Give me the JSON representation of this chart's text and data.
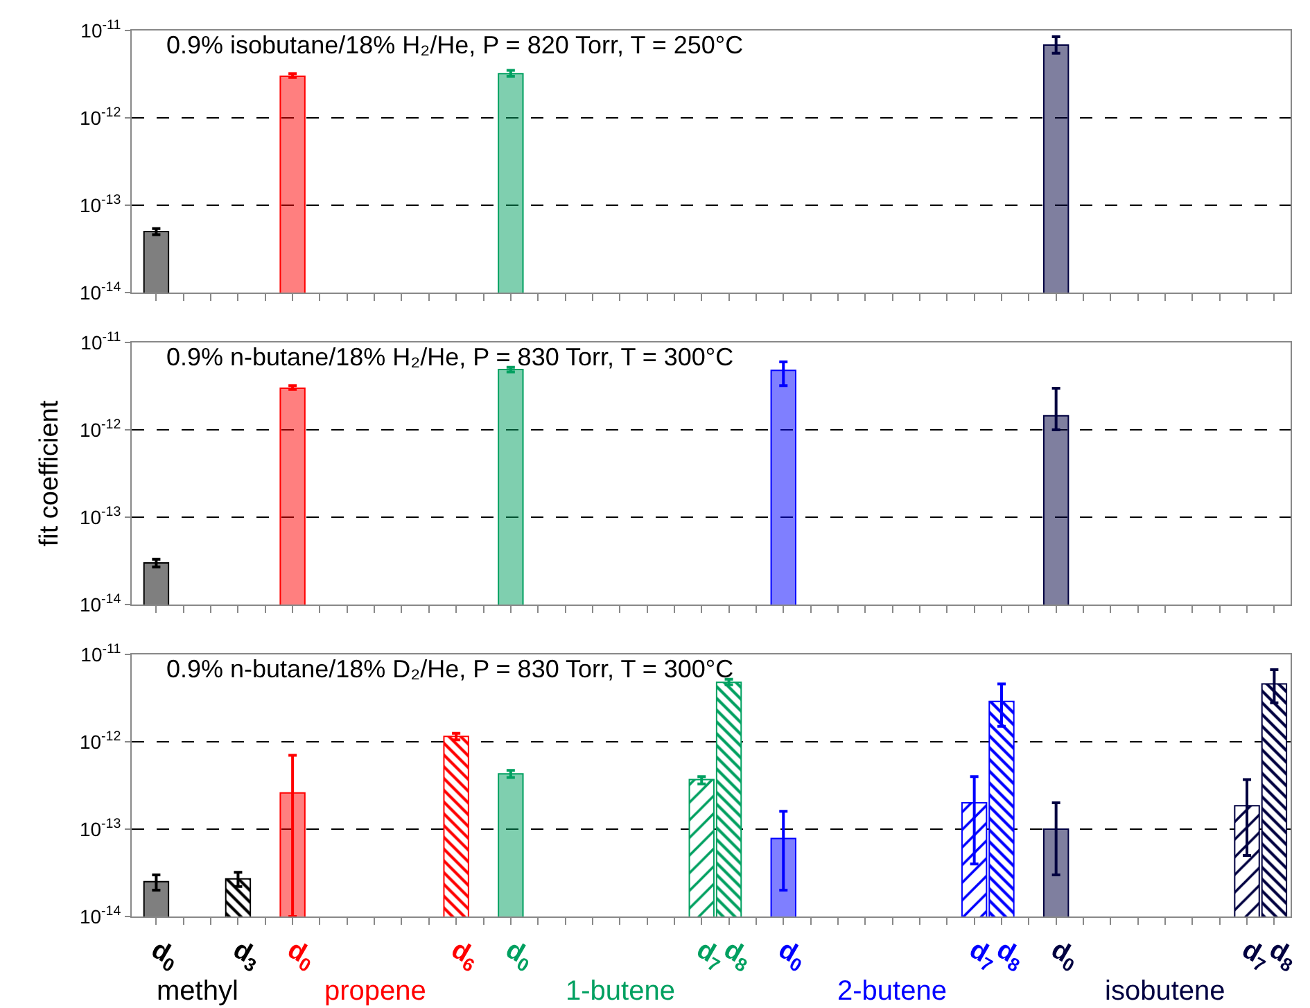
{
  "chart_data": [
    {
      "type": "bar",
      "title": "0.9% isobutane/18% H₂/He, P = 820 Torr, T = 250°C",
      "log": true,
      "grid": "y",
      "tick_labels": "y",
      "ylim": [
        1e-14,
        1e-11
      ],
      "yticks": [
        {
          "value": 1e-14,
          "label": "10$^{-14}$"
        },
        {
          "value": 1e-13,
          "label": "10$^{-13}$"
        },
        {
          "value": 1e-12,
          "label": "10$^{-12}$"
        },
        {
          "value": 1e-11,
          "label": "10$^{-11}$"
        }
      ],
      "series": [
        {
          "colors": [
            "#000000",
            null,
            null,
            null,
            null,
            "#ff0000",
            null,
            null,
            null,
            null,
            null,
            null,
            null,
            "#00a060",
            null,
            null,
            null,
            null,
            null,
            null,
            null,
            null,
            null,
            null,
            null,
            null,
            null,
            null,
            null,
            null,
            null,
            null,
            null,
            "#000040",
            null,
            null,
            null,
            null,
            null,
            null,
            null,
            null
          ],
          "values": [
            5e-14,
            null,
            null,
            null,
            null,
            3e-12,
            null,
            null,
            null,
            null,
            null,
            null,
            null,
            3.2e-12,
            null,
            null,
            null,
            null,
            null,
            null,
            null,
            null,
            null,
            null,
            null,
            null,
            null,
            null,
            null,
            null,
            null,
            null,
            null,
            6.8e-12,
            null,
            null,
            null,
            null,
            null,
            null,
            null,
            null
          ],
          "errors": [
            [
              4.6e-14,
              5.4e-14
            ],
            null,
            null,
            null,
            null,
            [
              2.9e-12,
              3.2e-12
            ],
            null,
            null,
            null,
            null,
            null,
            null,
            null,
            [
              3e-12,
              3.5e-12
            ],
            null,
            null,
            null,
            null,
            null,
            null,
            null,
            null,
            null,
            null,
            null,
            null,
            null,
            null,
            null,
            null,
            null,
            null,
            null,
            [
              5.5e-12,
              8.5e-12
            ],
            null,
            null,
            null,
            null,
            null,
            null,
            null,
            null
          ]
        }
      ]
    },
    {
      "type": "bar",
      "title": "0.9% n-butane/18% H₂/He, P = 830 Torr, T = 300°C",
      "ylabel": "fit coefficient",
      "log": true,
      "grid": "y",
      "tick_labels": "y",
      "ylim": [
        1e-14,
        1e-11
      ],
      "yticks": [
        {
          "value": 1e-14,
          "label": "10$^{-14}$"
        },
        {
          "value": 1e-13,
          "label": "10$^{-13}$"
        },
        {
          "value": 1e-12,
          "label": "10$^{-12}$"
        },
        {
          "value": 1e-11,
          "label": "10$^{-11}$"
        }
      ],
      "series": [
        {
          "colors": [
            "#000000",
            null,
            null,
            null,
            null,
            "#ff0000",
            null,
            null,
            null,
            null,
            null,
            null,
            null,
            "#00a060",
            null,
            null,
            null,
            null,
            null,
            null,
            null,
            null,
            null,
            "#0000ff",
            null,
            null,
            null,
            null,
            null,
            null,
            null,
            null,
            null,
            "#000040",
            null,
            null,
            null,
            null,
            null,
            null,
            null,
            null
          ],
          "values": [
            3e-14,
            null,
            null,
            null,
            null,
            3e-12,
            null,
            null,
            null,
            null,
            null,
            null,
            null,
            4.9e-12,
            null,
            null,
            null,
            null,
            null,
            null,
            null,
            null,
            null,
            4.8e-12,
            null,
            null,
            null,
            null,
            null,
            null,
            null,
            null,
            null,
            1.45e-12,
            null,
            null,
            null,
            null,
            null,
            null,
            null,
            null
          ],
          "errors": [
            [
              2.7e-14,
              3.3e-14
            ],
            null,
            null,
            null,
            null,
            [
              2.9e-12,
              3.2e-12
            ],
            null,
            null,
            null,
            null,
            null,
            null,
            null,
            [
              4.6e-12,
              5.2e-12
            ],
            null,
            null,
            null,
            null,
            null,
            null,
            null,
            null,
            null,
            [
              3.2e-12,
              6e-12
            ],
            null,
            null,
            null,
            null,
            null,
            null,
            null,
            null,
            null,
            [
              1e-12,
              3e-12
            ],
            null,
            null,
            null,
            null,
            null,
            null,
            null,
            null
          ]
        }
      ]
    },
    {
      "type": "bar",
      "title": "0.9% n-butane/18% D₂/He, P = 830 Torr, T = 300°C",
      "log": true,
      "grid": "y",
      "categories": [
        "d$_{0}$",
        null,
        null,
        "d$_{3}$",
        null,
        "d$_{0}$",
        null,
        null,
        null,
        null,
        null,
        "d$_{6}$",
        null,
        "d$_{0}$",
        null,
        null,
        null,
        null,
        null,
        null,
        "d$_{7}$",
        "d$_{8}$",
        null,
        "d$_{0}$",
        null,
        null,
        null,
        null,
        null,
        null,
        "d$_{7}$",
        "d$_{8}$",
        null,
        "d$_{0}$",
        null,
        null,
        null,
        null,
        null,
        null,
        "d$_{7}$",
        "d$_{8}$"
      ],
      "ylim": [
        1e-14,
        1e-11
      ],
      "yticks": [
        {
          "value": 1e-14,
          "label": "10$^{-14}$"
        },
        {
          "value": 1e-13,
          "label": "10$^{-13}$"
        },
        {
          "value": 1e-12,
          "label": "10$^{-12}$"
        },
        {
          "value": 1e-11,
          "label": "10$^{-11}$"
        }
      ],
      "annotations": [
        "methyl",
        "propene",
        "1-butene",
        "2-butene",
        "isobutene"
      ],
      "series": [
        {
          "colors": [
            "#000000",
            null,
            null,
            "#000000",
            null,
            "#ff0000",
            null,
            null,
            null,
            null,
            null,
            "#ff0000",
            null,
            "#00a060",
            null,
            null,
            null,
            null,
            null,
            null,
            "#00a060",
            "#00a060",
            null,
            "#0000ff",
            null,
            null,
            null,
            null,
            null,
            null,
            "#0000ff",
            "#0000ff",
            null,
            "#000040",
            null,
            null,
            null,
            null,
            null,
            null,
            "#000040",
            "#000040"
          ],
          "values": [
            2.5e-14,
            null,
            null,
            null,
            null,
            2.6e-13,
            null,
            null,
            null,
            null,
            null,
            null,
            null,
            4.3e-13,
            null,
            null,
            null,
            null,
            null,
            null,
            null,
            null,
            null,
            7.8e-14,
            null,
            null,
            null,
            null,
            null,
            null,
            null,
            null,
            null,
            1e-13,
            null,
            null,
            null,
            null,
            null,
            null,
            null,
            null
          ],
          "errors": [
            [
              2e-14,
              3e-14
            ],
            null,
            null,
            null,
            null,
            [
              1e-14,
              7e-13
            ],
            null,
            null,
            null,
            null,
            null,
            null,
            null,
            [
              3.9e-13,
              4.7e-13
            ],
            null,
            null,
            null,
            null,
            null,
            null,
            null,
            null,
            null,
            [
              2e-14,
              1.6e-13
            ],
            null,
            null,
            null,
            null,
            null,
            null,
            null,
            null,
            null,
            [
              3e-14,
              2e-13
            ],
            null,
            null,
            null,
            null,
            null,
            null,
            null,
            null
          ]
        },
        {
          "colors": [
            null,
            null,
            null,
            null,
            null,
            null,
            null,
            null,
            null,
            null,
            null,
            null,
            null,
            null,
            null,
            null,
            null,
            null,
            null,
            null,
            "#00a060",
            null,
            null,
            null,
            null,
            null,
            null,
            null,
            null,
            null,
            "#0000ff",
            null,
            null,
            null,
            null,
            null,
            null,
            null,
            null,
            null,
            "#000040",
            null
          ],
          "values": [
            null,
            null,
            null,
            null,
            null,
            null,
            null,
            null,
            null,
            null,
            null,
            null,
            null,
            null,
            null,
            null,
            null,
            null,
            null,
            null,
            3.7e-13,
            null,
            null,
            null,
            null,
            null,
            null,
            null,
            null,
            null,
            2e-13,
            null,
            null,
            null,
            null,
            null,
            null,
            null,
            null,
            null,
            1.85e-13,
            null
          ],
          "errors": [
            null,
            null,
            null,
            null,
            null,
            null,
            null,
            null,
            null,
            null,
            null,
            null,
            null,
            null,
            null,
            null,
            null,
            null,
            null,
            null,
            [
              3.3e-13,
              4e-13
            ],
            null,
            null,
            null,
            null,
            null,
            null,
            null,
            null,
            null,
            [
              4e-14,
              4e-13
            ],
            null,
            null,
            null,
            null,
            null,
            null,
            null,
            null,
            null,
            [
              5e-14,
              3.7e-13
            ],
            null
          ]
        },
        {
          "colors": [
            null,
            null,
            null,
            "#000000",
            null,
            null,
            null,
            null,
            null,
            null,
            null,
            "#ff0000",
            null,
            null,
            null,
            null,
            null,
            null,
            null,
            null,
            null,
            "#00a060",
            null,
            null,
            null,
            null,
            null,
            null,
            null,
            null,
            null,
            "#0000ff",
            null,
            null,
            null,
            null,
            null,
            null,
            null,
            null,
            null,
            "#000040"
          ],
          "values": [
            null,
            null,
            null,
            2.7e-14,
            null,
            null,
            null,
            null,
            null,
            null,
            null,
            1.15e-12,
            null,
            null,
            null,
            null,
            null,
            null,
            null,
            null,
            null,
            4.8e-12,
            null,
            null,
            null,
            null,
            null,
            null,
            null,
            null,
            null,
            2.9e-12,
            null,
            null,
            null,
            null,
            null,
            null,
            null,
            null,
            null,
            4.6e-12
          ],
          "errors": [
            null,
            null,
            null,
            [
              2.2e-14,
              3.2e-14
            ],
            null,
            null,
            null,
            null,
            null,
            null,
            null,
            [
              1.05e-12,
              1.25e-12
            ],
            null,
            null,
            null,
            null,
            null,
            null,
            null,
            null,
            null,
            [
              4.5e-12,
              5.2e-12
            ],
            null,
            null,
            null,
            null,
            null,
            null,
            null,
            null,
            null,
            [
              1.5e-12,
              4.6e-12
            ],
            null,
            null,
            null,
            null,
            null,
            null,
            null,
            null,
            null,
            [
              2.8e-12,
              6.7e-12
            ]
          ]
        }
      ]
    }
  ]
}
